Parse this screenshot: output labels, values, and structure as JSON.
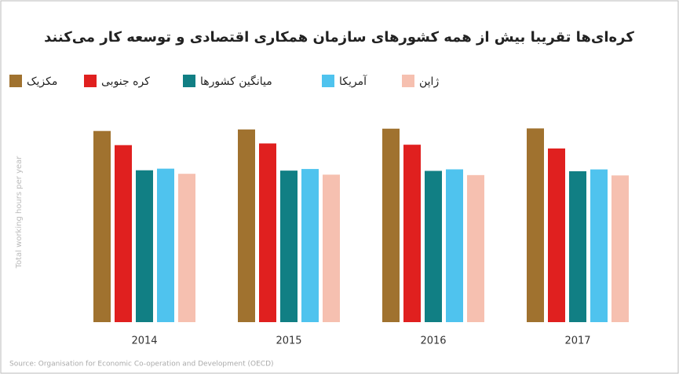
{
  "chart_data": {
    "type": "bar",
    "title": "کره‌ای‌ها تقریبا بیش از همه کشورهای سازمان همکاری اقتصادی و توسعه کار می‌کنند",
    "y_label": "Total working hours per year",
    "source": "Source: Organisation for Economic Co-operation and Development (OECD)",
    "categories": [
      "2014",
      "2015",
      "2016",
      "2017"
    ],
    "series": [
      {
        "name": "مکزیک",
        "color": "#a0722f",
        "values": [
          2228,
          2246,
          2255,
          2258
        ]
      },
      {
        "name": "کره جنوبی",
        "color": "#e0201f",
        "values": [
          2063,
          2083,
          2068,
          2024
        ]
      },
      {
        "name": "میانگین کشورها",
        "color": "#117f84",
        "values": [
          1770,
          1766,
          1763,
          1759
        ]
      },
      {
        "name": "آمریکا",
        "color": "#4fc3ee",
        "values": [
          1789,
          1785,
          1781,
          1780
        ]
      },
      {
        "name": "ژاپن",
        "color": "#f6c0b0",
        "values": [
          1729,
          1719,
          1714,
          1710
        ]
      }
    ],
    "ylim": [
      0,
      2500
    ]
  }
}
